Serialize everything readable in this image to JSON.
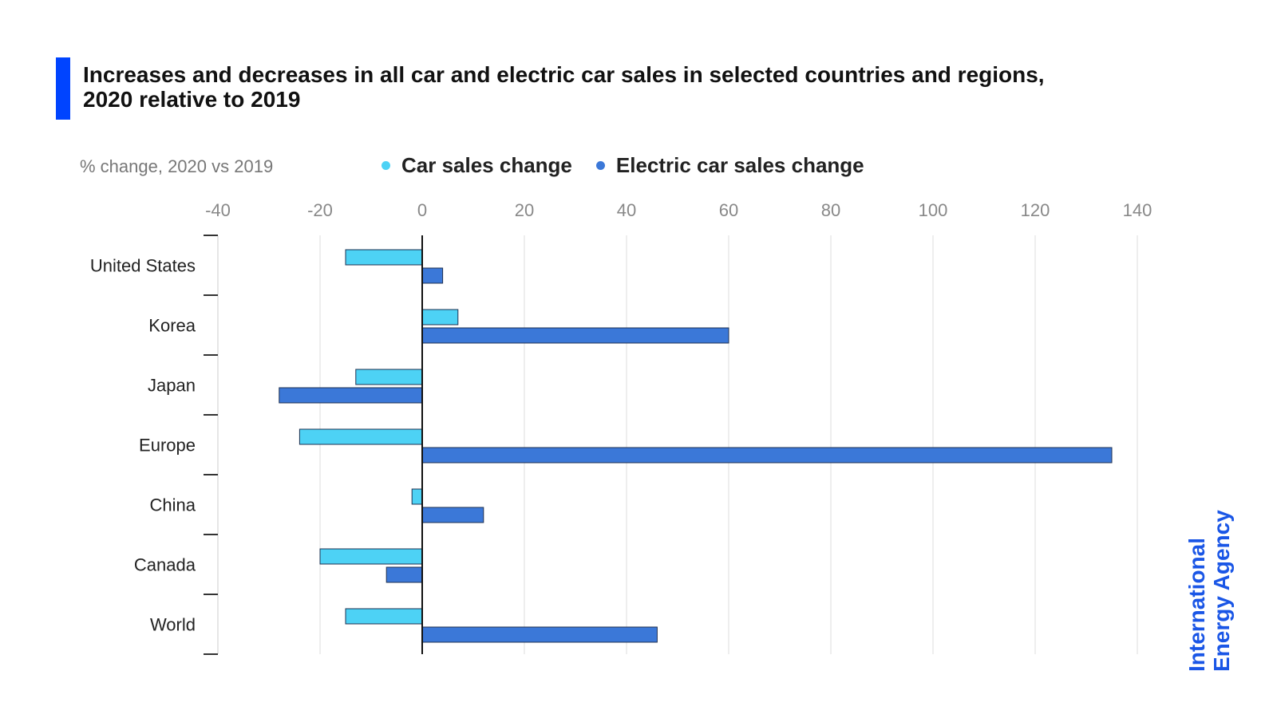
{
  "header": {
    "title_line1": "Increases and decreases in all car and electric car sales in selected countries and regions,",
    "title_line2": "2020 relative to 2019"
  },
  "unit_label": "% change, 2020 vs 2019",
  "legend": [
    {
      "label": "Car sales change",
      "color": "#4dd2f5"
    },
    {
      "label": "Electric car sales change",
      "color": "#3b78d8"
    }
  ],
  "logo": {
    "line1": "International",
    "line2": "Energy Agency",
    "color": "#1a56e6"
  },
  "chart_data": {
    "type": "bar",
    "orientation": "horizontal",
    "title": "Increases and decreases in all car and electric car sales in selected countries and regions, 2020 relative to 2019",
    "xlabel": "% change, 2020 vs 2019",
    "ylabel": "",
    "xlim": [
      -40,
      140
    ],
    "xticks": [
      -40,
      -20,
      0,
      20,
      40,
      60,
      80,
      100,
      120,
      140
    ],
    "categories": [
      "United States",
      "Korea",
      "Japan",
      "Europe",
      "China",
      "Canada",
      "World"
    ],
    "series": [
      {
        "name": "Car sales change",
        "color": "#4dd2f5",
        "values": [
          -15,
          7,
          -13,
          -24,
          -2,
          -20,
          -15
        ]
      },
      {
        "name": "Electric car sales change",
        "color": "#3b78d8",
        "values": [
          4,
          60,
          -28,
          135,
          12,
          -7,
          46
        ]
      }
    ],
    "grid": true,
    "legend_position": "top"
  }
}
